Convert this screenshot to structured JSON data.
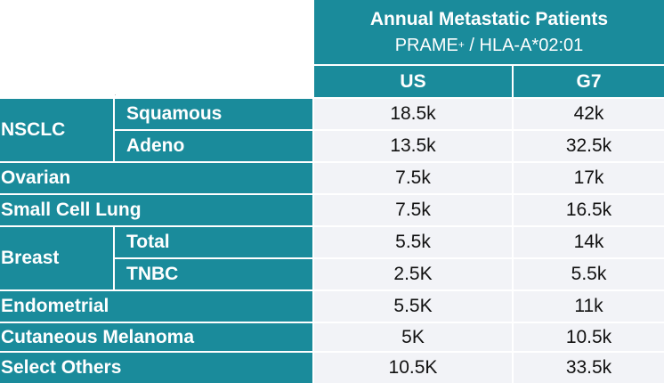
{
  "header": {
    "title": "Annual Metastatic Patients",
    "subtitle_main": "PRAME",
    "subtitle_sup": "+",
    "subtitle_rest": " / HLA-A*02:01"
  },
  "columns": [
    "US",
    "G7"
  ],
  "groups": {
    "nsclc": "NSCLC",
    "breast": "Breast"
  },
  "rows": [
    {
      "label": "Squamous",
      "us": "18.5k",
      "g7": "42k"
    },
    {
      "label": "Adeno",
      "us": "13.5k",
      "g7": "32.5k"
    },
    {
      "label": "Ovarian",
      "us": "7.5k",
      "g7": "17k"
    },
    {
      "label": "Small Cell Lung",
      "us": "7.5k",
      "g7": "16.5k"
    },
    {
      "label": "Total",
      "us": "5.5k",
      "g7": "14k"
    },
    {
      "label": "TNBC",
      "us": "2.5K",
      "g7": "5.5k"
    },
    {
      "label": "Endometrial",
      "us": "5.5K",
      "g7": "11k"
    },
    {
      "label": "Cutaneous Melanoma",
      "us": "5K",
      "g7": "10.5k"
    },
    {
      "label": "Select Others",
      "us": "10.5K",
      "g7": "33.5k"
    }
  ]
}
